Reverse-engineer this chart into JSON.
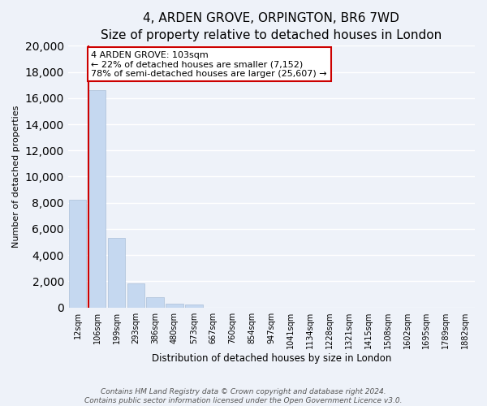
{
  "title": "4, ARDEN GROVE, ORPINGTON, BR6 7WD",
  "subtitle": "Size of property relative to detached houses in London",
  "xlabel": "Distribution of detached houses by size in London",
  "ylabel": "Number of detached properties",
  "bar_labels": [
    "12sqm",
    "106sqm",
    "199sqm",
    "293sqm",
    "386sqm",
    "480sqm",
    "573sqm",
    "667sqm",
    "760sqm",
    "854sqm",
    "947sqm",
    "1041sqm",
    "1134sqm",
    "1228sqm",
    "1321sqm",
    "1415sqm",
    "1508sqm",
    "1602sqm",
    "1695sqm",
    "1789sqm",
    "1882sqm"
  ],
  "bar_values": [
    8200,
    16600,
    5300,
    1850,
    800,
    300,
    200,
    0,
    0,
    0,
    0,
    0,
    0,
    0,
    0,
    0,
    0,
    0,
    0,
    0,
    0
  ],
  "bar_color": "#c5d8f0",
  "bar_edge_color": "#aabfd8",
  "marker_line_color": "#cc0000",
  "annotation_title": "4 ARDEN GROVE: 103sqm",
  "annotation_line1": "← 22% of detached houses are smaller (7,152)",
  "annotation_line2": "78% of semi-detached houses are larger (25,607) →",
  "annotation_box_color": "#ffffff",
  "annotation_box_edge": "#cc0000",
  "ylim": [
    0,
    20000
  ],
  "yticks": [
    0,
    2000,
    4000,
    6000,
    8000,
    10000,
    12000,
    14000,
    16000,
    18000,
    20000
  ],
  "footer_line1": "Contains HM Land Registry data © Crown copyright and database right 2024.",
  "footer_line2": "Contains public sector information licensed under the Open Government Licence v3.0.",
  "bg_color": "#eef2f9",
  "plot_bg_color": "#eef2f9",
  "grid_color": "#ffffff",
  "title_fontsize": 11,
  "xlabel_fontsize": 8.5,
  "ylabel_fontsize": 8,
  "annotation_fontsize": 8,
  "tick_fontsize": 7,
  "footer_fontsize": 6.5
}
